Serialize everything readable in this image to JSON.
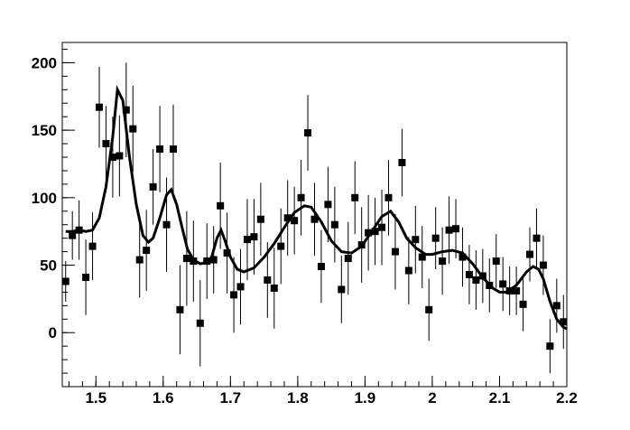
{
  "chart_data": {
    "type": "scatter",
    "title": "",
    "xlabel": "",
    "ylabel": "",
    "xlim": [
      1.45,
      2.2
    ],
    "ylim": [
      -40,
      215
    ],
    "grid": false,
    "legend": "none",
    "colors": {
      "points": "#000000",
      "curve": "#000000",
      "frame": "#000000"
    },
    "x_ticks": [
      {
        "value": 1.5,
        "label": "1.5"
      },
      {
        "value": 1.6,
        "label": "1.6"
      },
      {
        "value": 1.7,
        "label": "1.7"
      },
      {
        "value": 1.8,
        "label": "1.8"
      },
      {
        "value": 1.9,
        "label": "1.9"
      },
      {
        "value": 2.0,
        "label": "2"
      },
      {
        "value": 2.1,
        "label": "2.1"
      },
      {
        "value": 2.2,
        "label": "2.2"
      }
    ],
    "y_ticks": [
      {
        "value": 0,
        "label": "0"
      },
      {
        "value": 50,
        "label": "50"
      },
      {
        "value": 100,
        "label": "100"
      },
      {
        "value": 150,
        "label": "150"
      },
      {
        "value": 200,
        "label": "200"
      }
    ],
    "series": [
      {
        "kind": "data-points",
        "points": [
          {
            "x": 1.455,
            "y": 38,
            "err": 15
          },
          {
            "x": 1.465,
            "y": 72,
            "err": 18
          },
          {
            "x": 1.475,
            "y": 76,
            "err": 22
          },
          {
            "x": 1.485,
            "y": 41,
            "err": 28
          },
          {
            "x": 1.495,
            "y": 64,
            "err": 25
          },
          {
            "x": 1.505,
            "y": 167,
            "err": 30
          },
          {
            "x": 1.515,
            "y": 140,
            "err": 28
          },
          {
            "x": 1.525,
            "y": 130,
            "err": 30
          },
          {
            "x": 1.535,
            "y": 131,
            "err": 30
          },
          {
            "x": 1.545,
            "y": 165,
            "err": 35
          },
          {
            "x": 1.555,
            "y": 151,
            "err": 32
          },
          {
            "x": 1.565,
            "y": 54,
            "err": 28
          },
          {
            "x": 1.575,
            "y": 61,
            "err": 30
          },
          {
            "x": 1.585,
            "y": 108,
            "err": 28
          },
          {
            "x": 1.595,
            "y": 136,
            "err": 32
          },
          {
            "x": 1.605,
            "y": 80,
            "err": 35
          },
          {
            "x": 1.615,
            "y": 136,
            "err": 33
          },
          {
            "x": 1.625,
            "y": 17,
            "err": 33
          },
          {
            "x": 1.635,
            "y": 55,
            "err": 35
          },
          {
            "x": 1.645,
            "y": 53,
            "err": 30
          },
          {
            "x": 1.655,
            "y": 7,
            "err": 32
          },
          {
            "x": 1.665,
            "y": 53,
            "err": 28
          },
          {
            "x": 1.675,
            "y": 54,
            "err": 25
          },
          {
            "x": 1.685,
            "y": 94,
            "err": 32
          },
          {
            "x": 1.695,
            "y": 59,
            "err": 30
          },
          {
            "x": 1.705,
            "y": 28,
            "err": 28
          },
          {
            "x": 1.715,
            "y": 34,
            "err": 28
          },
          {
            "x": 1.725,
            "y": 69,
            "err": 30
          },
          {
            "x": 1.735,
            "y": 71,
            "err": 28
          },
          {
            "x": 1.745,
            "y": 84,
            "err": 27
          },
          {
            "x": 1.755,
            "y": 39,
            "err": 28
          },
          {
            "x": 1.765,
            "y": 33,
            "err": 30
          },
          {
            "x": 1.775,
            "y": 64,
            "err": 28
          },
          {
            "x": 1.785,
            "y": 85,
            "err": 28
          },
          {
            "x": 1.795,
            "y": 83,
            "err": 25
          },
          {
            "x": 1.805,
            "y": 100,
            "err": 28
          },
          {
            "x": 1.815,
            "y": 148,
            "err": 28
          },
          {
            "x": 1.825,
            "y": 84,
            "err": 27
          },
          {
            "x": 1.835,
            "y": 49,
            "err": 27
          },
          {
            "x": 1.845,
            "y": 95,
            "err": 28
          },
          {
            "x": 1.855,
            "y": 80,
            "err": 28
          },
          {
            "x": 1.865,
            "y": 32,
            "err": 25
          },
          {
            "x": 1.875,
            "y": 55,
            "err": 27
          },
          {
            "x": 1.885,
            "y": 100,
            "err": 27
          },
          {
            "x": 1.895,
            "y": 65,
            "err": 28
          },
          {
            "x": 1.905,
            "y": 74,
            "err": 28
          },
          {
            "x": 1.915,
            "y": 75,
            "err": 25
          },
          {
            "x": 1.925,
            "y": 78,
            "err": 28
          },
          {
            "x": 1.935,
            "y": 100,
            "err": 28
          },
          {
            "x": 1.945,
            "y": 60,
            "err": 28
          },
          {
            "x": 1.955,
            "y": 126,
            "err": 25
          },
          {
            "x": 1.965,
            "y": 46,
            "err": 25
          },
          {
            "x": 1.975,
            "y": 69,
            "err": 25
          },
          {
            "x": 1.985,
            "y": 56,
            "err": 23
          },
          {
            "x": 1.995,
            "y": 17,
            "err": 23
          },
          {
            "x": 2.005,
            "y": 70,
            "err": 23
          },
          {
            "x": 2.015,
            "y": 53,
            "err": 25
          },
          {
            "x": 2.025,
            "y": 76,
            "err": 25
          },
          {
            "x": 2.035,
            "y": 77,
            "err": 22
          },
          {
            "x": 2.045,
            "y": 56,
            "err": 22
          },
          {
            "x": 2.055,
            "y": 43,
            "err": 22
          },
          {
            "x": 2.065,
            "y": 39,
            "err": 22
          },
          {
            "x": 2.075,
            "y": 42,
            "err": 20
          },
          {
            "x": 2.085,
            "y": 35,
            "err": 20
          },
          {
            "x": 2.095,
            "y": 53,
            "err": 20
          },
          {
            "x": 2.105,
            "y": 36,
            "err": 20
          },
          {
            "x": 2.115,
            "y": 31,
            "err": 18
          },
          {
            "x": 2.125,
            "y": 31,
            "err": 18
          },
          {
            "x": 2.135,
            "y": 21,
            "err": 20
          },
          {
            "x": 2.145,
            "y": 58,
            "err": 20
          },
          {
            "x": 2.155,
            "y": 70,
            "err": 22
          },
          {
            "x": 2.165,
            "y": 50,
            "err": 22
          },
          {
            "x": 2.175,
            "y": -10,
            "err": 20
          },
          {
            "x": 2.185,
            "y": 20,
            "err": 20
          },
          {
            "x": 2.195,
            "y": 8,
            "err": 20
          }
        ]
      },
      {
        "kind": "fit-curve",
        "points": [
          [
            1.455,
            75
          ],
          [
            1.465,
            75
          ],
          [
            1.475,
            76
          ],
          [
            1.485,
            75
          ],
          [
            1.495,
            76
          ],
          [
            1.505,
            85
          ],
          [
            1.515,
            108
          ],
          [
            1.525,
            145
          ],
          [
            1.532,
            180
          ],
          [
            1.54,
            172
          ],
          [
            1.55,
            130
          ],
          [
            1.56,
            95
          ],
          [
            1.57,
            72
          ],
          [
            1.578,
            67
          ],
          [
            1.585,
            70
          ],
          [
            1.595,
            85
          ],
          [
            1.605,
            102
          ],
          [
            1.612,
            106
          ],
          [
            1.62,
            95
          ],
          [
            1.628,
            78
          ],
          [
            1.636,
            62
          ],
          [
            1.645,
            54
          ],
          [
            1.655,
            51
          ],
          [
            1.665,
            52
          ],
          [
            1.672,
            56
          ],
          [
            1.68,
            70
          ],
          [
            1.686,
            76
          ],
          [
            1.692,
            68
          ],
          [
            1.7,
            56
          ],
          [
            1.71,
            47
          ],
          [
            1.72,
            45
          ],
          [
            1.735,
            48
          ],
          [
            1.75,
            56
          ],
          [
            1.765,
            66
          ],
          [
            1.78,
            78
          ],
          [
            1.795,
            89
          ],
          [
            1.81,
            94
          ],
          [
            1.82,
            93
          ],
          [
            1.835,
            82
          ],
          [
            1.85,
            68
          ],
          [
            1.865,
            60
          ],
          [
            1.88,
            59
          ],
          [
            1.895,
            64
          ],
          [
            1.91,
            75
          ],
          [
            1.925,
            86
          ],
          [
            1.938,
            90
          ],
          [
            1.95,
            82
          ],
          [
            1.962,
            70
          ],
          [
            1.975,
            63
          ],
          [
            1.99,
            58
          ],
          [
            2.0,
            58
          ],
          [
            2.015,
            60
          ],
          [
            2.03,
            61
          ],
          [
            2.045,
            59
          ],
          [
            2.06,
            51
          ],
          [
            2.075,
            41
          ],
          [
            2.09,
            33
          ],
          [
            2.1,
            30
          ],
          [
            2.11,
            30
          ],
          [
            2.125,
            35
          ],
          [
            2.14,
            45
          ],
          [
            2.15,
            49
          ],
          [
            2.158,
            47
          ],
          [
            2.165,
            40
          ],
          [
            2.175,
            23
          ],
          [
            2.185,
            10
          ],
          [
            2.195,
            4
          ],
          [
            2.2,
            3
          ]
        ]
      }
    ]
  }
}
